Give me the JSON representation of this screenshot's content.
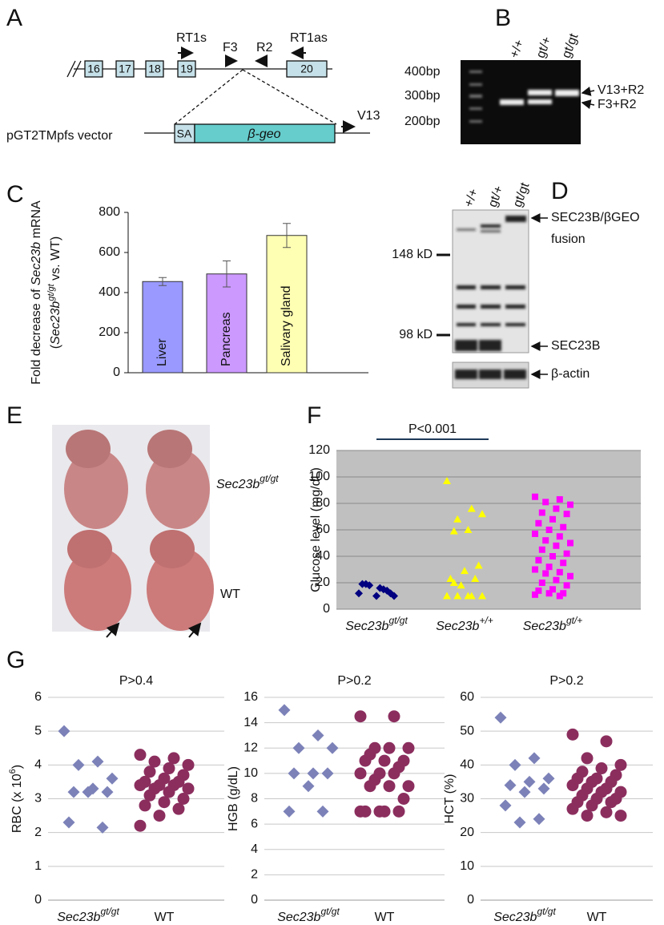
{
  "panel_labels": [
    "A",
    "B",
    "C",
    "D",
    "E",
    "F",
    "G"
  ],
  "diagram_a": {
    "primers": [
      "RT1s",
      "F3",
      "R2",
      "RT1as"
    ],
    "exons": [
      "16",
      "17",
      "18",
      "19",
      "20"
    ],
    "vector": "pGT2TMpfs vector",
    "sa": "SA",
    "geo": "β-geo",
    "v13": "V13"
  },
  "gel_b": {
    "lanes": [
      "+/+",
      "gt/+",
      "gt/gt"
    ],
    "sizes": [
      "400bp",
      "300bp",
      "200bp"
    ],
    "bands": [
      "V13+R2",
      "F3+R2"
    ]
  },
  "blot_d": {
    "lanes": [
      "+/+",
      "gt/+",
      "gt/gt"
    ],
    "markers": [
      "148 kD",
      "98 kD"
    ],
    "bands": [
      "SEC23B/βGEO",
      "fusion",
      "SEC23B",
      "β-actin"
    ]
  },
  "photo_e": {
    "gene": "Sec23b",
    "genotype": "gt/gt",
    "wt": "WT"
  },
  "chart_data": [
    {
      "type": "bar",
      "categories": [
        "Liver",
        "Pancreas",
        "Salivary gland"
      ],
      "values": [
        455,
        493,
        685
      ],
      "errors": [
        20,
        65,
        60
      ],
      "colors": [
        "#9999ff",
        "#cc99ff",
        "#ffffb3"
      ],
      "ylim": [
        0,
        800
      ],
      "yticks": [
        0,
        200,
        400,
        600,
        800
      ],
      "ylabel": [
        "Fold decrease of ",
        "Sec23b",
        " mRNA"
      ],
      "ylabel2": [
        "(",
        "Sec23b",
        "gt/gt",
        " vs. WT)"
      ]
    },
    {
      "type": "scatter",
      "title": "P<0.001",
      "ylabel": "Glucose level (mg/dL)",
      "categories": [
        "Sec23b",
        "Sec23b",
        "Sec23b"
      ],
      "category_superscripts": [
        "gt/gt",
        "+/+",
        "gt/+"
      ],
      "ylim": [
        0,
        120
      ],
      "yticks": [
        0,
        20,
        40,
        60,
        80,
        100,
        120
      ],
      "grid": true,
      "background": "#c0c0c0",
      "series": [
        {
          "color": "#000080",
          "marker": "diamond",
          "values": [
            12,
            15,
            18,
            10,
            16,
            19,
            12,
            10,
            19,
            14
          ]
        },
        {
          "color": "#ffff00",
          "marker": "triangle",
          "values": [
            97,
            76,
            68,
            72,
            60,
            59,
            33,
            29,
            23,
            23,
            18,
            10,
            10,
            10,
            10,
            10,
            20
          ]
        },
        {
          "color": "#ff00ff",
          "marker": "square",
          "values": [
            85,
            83,
            81,
            79,
            76,
            73,
            72,
            68,
            65,
            62,
            60,
            57,
            55,
            52,
            50,
            48,
            45,
            42,
            40,
            37,
            35,
            32,
            30,
            28,
            27,
            25,
            22,
            20,
            18,
            15,
            14,
            12,
            12,
            11,
            10
          ]
        }
      ]
    },
    {
      "type": "scatter",
      "title": "P>0.4",
      "ylabel": [
        "RBC (x 10",
        "6",
        ")"
      ],
      "categories": [
        "Sec23b",
        "WT"
      ],
      "category_superscripts": [
        "gt/gt",
        null
      ],
      "ylim": [
        0,
        6
      ],
      "yticks": [
        0,
        1,
        2,
        3,
        4,
        5,
        6
      ],
      "grid": true,
      "series": [
        {
          "color": "#7c82b8",
          "marker": "diamond",
          "values": [
            5.0,
            4.1,
            4.0,
            3.6,
            3.3,
            3.2,
            3.2,
            3.2,
            2.3,
            2.15
          ]
        },
        {
          "color": "#8b2e5e",
          "marker": "circle",
          "values": [
            4.3,
            4.2,
            4.1,
            4.0,
            3.9,
            3.8,
            3.7,
            3.6,
            3.5,
            3.5,
            3.4,
            3.4,
            3.4,
            3.3,
            3.3,
            3.2,
            3.1,
            3.0,
            2.9,
            2.8,
            2.7,
            2.5,
            2.2
          ]
        }
      ]
    },
    {
      "type": "scatter",
      "title": "P>0.2",
      "ylabel": "HGB (g/dL)",
      "categories": [
        "Sec23b",
        "WT"
      ],
      "category_superscripts": [
        "gt/gt",
        null
      ],
      "ylim": [
        0,
        16
      ],
      "yticks": [
        0,
        2,
        4,
        6,
        8,
        10,
        12,
        14,
        16
      ],
      "grid": true,
      "series": [
        {
          "color": "#7c82b8",
          "marker": "diamond",
          "values": [
            15,
            13,
            12,
            12,
            10,
            10,
            10,
            9,
            7,
            7
          ]
        },
        {
          "color": "#8b2e5e",
          "marker": "circle",
          "values": [
            14.5,
            14.5,
            12,
            12,
            12,
            11.5,
            11,
            11,
            11,
            10.5,
            10,
            10,
            10,
            9.5,
            9,
            9,
            9,
            8,
            7,
            7,
            7,
            7,
            7
          ]
        }
      ]
    },
    {
      "type": "scatter",
      "title": "P>0.2",
      "ylabel": "HCT (%)",
      "categories": [
        "Sec23b",
        "WT"
      ],
      "category_superscripts": [
        "gt/gt",
        null
      ],
      "ylim": [
        0,
        60
      ],
      "yticks": [
        0,
        10,
        20,
        30,
        40,
        50,
        60
      ],
      "grid": true,
      "series": [
        {
          "color": "#7c82b8",
          "marker": "diamond",
          "values": [
            54,
            42,
            40,
            36,
            35,
            34,
            33,
            32,
            28,
            24,
            23
          ]
        },
        {
          "color": "#8b2e5e",
          "marker": "circle",
          "values": [
            49,
            47,
            42,
            40,
            39,
            38,
            37,
            36,
            36,
            35,
            35,
            34,
            33,
            33,
            32,
            32,
            31,
            30,
            30,
            29,
            29,
            28,
            27,
            26,
            25,
            25
          ]
        }
      ]
    }
  ]
}
